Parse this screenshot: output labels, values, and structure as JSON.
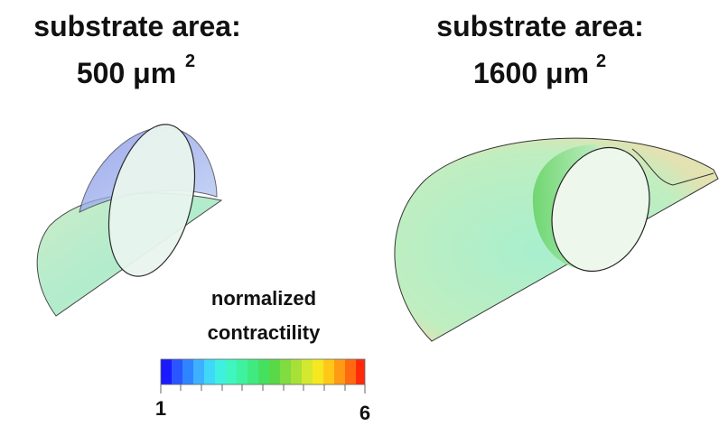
{
  "panels": [
    {
      "title": "substrate area:",
      "area": "500 μm",
      "exponent": "2"
    },
    {
      "title": "substrate area:",
      "area": "1600 μm",
      "exponent": "2"
    }
  ],
  "colorbar": {
    "label": [
      "normalized",
      "contractility"
    ],
    "min": "1",
    "max": "6"
  }
}
